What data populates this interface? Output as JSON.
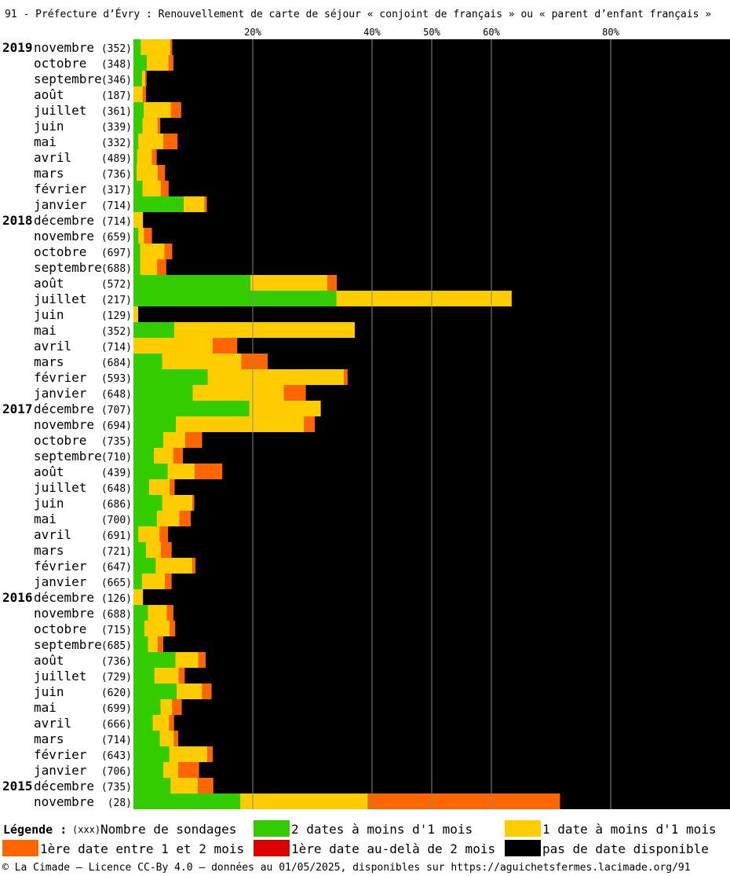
{
  "title": "91 - Préfecture d’Évry : Renouvellement de carte de séjour « conjoint de français » ou « parent d’enfant français »",
  "footer": "© La Cimade — Licence CC-By 4.0 — données au 01/05/2025, disponibles sur https://aguichetsfermes.lacimade.org/91",
  "legend": {
    "title": "Légende :",
    "count_marker": "(xxx)",
    "count_label": "Nombre de sondages",
    "items": [
      {
        "label": "2 dates à moins d'1 mois",
        "color": "#33cc00"
      },
      {
        "label": "1 date à moins d'1 mois",
        "color": "#ffcc00"
      },
      {
        "label": "1ère date entre 1 et 2 mois",
        "color": "#ff6600"
      },
      {
        "label": "1ère date au-delà de 2 mois",
        "color": "#dd0000"
      },
      {
        "label": "pas de date disponible",
        "color": "#000000"
      }
    ]
  },
  "chart_data": {
    "type": "bar",
    "orientation": "horizontal",
    "stacked": true,
    "xlim": [
      0,
      100
    ],
    "x_ticks": [
      20,
      40,
      50,
      60,
      80
    ],
    "x_tick_labels": [
      "20%",
      "40%",
      "50%",
      "60%",
      "80%"
    ],
    "grid": true,
    "colors": [
      "#33cc00",
      "#ffcc00",
      "#ff6600",
      "#dd0000",
      "#000000"
    ],
    "series_labels": [
      "2 dates à moins d'1 mois",
      "1 date à moins d'1 mois",
      "1ère date entre 1 et 2 mois",
      "1ère date au-delà de 2 mois",
      "pas de date disponible"
    ],
    "rows": [
      {
        "year": "2019",
        "month": "novembre",
        "count": "(352)",
        "values": [
          1.2,
          5.0,
          0.3,
          0
        ]
      },
      {
        "year": "",
        "month": "octobre",
        "count": "(348)",
        "values": [
          2.2,
          3.7,
          0.8,
          0
        ]
      },
      {
        "year": "",
        "month": "septembre",
        "count": "(346)",
        "values": [
          1.4,
          0.6,
          0.2,
          0
        ]
      },
      {
        "year": "",
        "month": "août",
        "count": "(187)",
        "values": [
          0,
          1.6,
          0.5,
          0
        ]
      },
      {
        "year": "",
        "month": "juillet",
        "count": "(361)",
        "values": [
          1.7,
          4.6,
          1.7,
          0
        ]
      },
      {
        "year": "",
        "month": "juin",
        "count": "(339)",
        "values": [
          1.5,
          2.6,
          0.4,
          0
        ]
      },
      {
        "year": "",
        "month": "mai",
        "count": "(332)",
        "values": [
          0.8,
          4.2,
          2.4,
          0
        ]
      },
      {
        "year": "",
        "month": "avril",
        "count": "(489)",
        "values": [
          0.6,
          2.5,
          0.8,
          0
        ]
      },
      {
        "year": "",
        "month": "mars",
        "count": "(736)",
        "values": [
          0.5,
          3.6,
          1.2,
          0
        ]
      },
      {
        "year": "",
        "month": "février",
        "count": "(317)",
        "values": [
          1.5,
          3.1,
          1.3,
          0
        ]
      },
      {
        "year": "",
        "month": "janvier",
        "count": "(714)",
        "values": [
          8.4,
          3.5,
          0.4,
          0
        ]
      },
      {
        "year": "2018",
        "month": "décembre",
        "count": "(714)",
        "values": [
          0,
          1.6,
          0,
          0
        ]
      },
      {
        "year": "",
        "month": "novembre",
        "count": "(659)",
        "values": [
          0.8,
          1.0,
          1.3,
          0
        ]
      },
      {
        "year": "",
        "month": "octobre",
        "count": "(697)",
        "values": [
          1.1,
          4.1,
          1.3,
          0
        ]
      },
      {
        "year": "",
        "month": "septembre",
        "count": "(688)",
        "values": [
          1.1,
          2.9,
          1.5,
          0
        ]
      },
      {
        "year": "",
        "month": "août",
        "count": "(572)",
        "values": [
          19.6,
          12.9,
          1.6,
          0
        ]
      },
      {
        "year": "",
        "month": "juillet",
        "count": "(217)",
        "values": [
          34.0,
          29.4,
          0,
          0
        ]
      },
      {
        "year": "",
        "month": "juin",
        "count": "(129)",
        "values": [
          0,
          0.8,
          0,
          0
        ]
      },
      {
        "year": "",
        "month": "mai",
        "count": "(352)",
        "values": [
          6.8,
          30.3,
          0,
          0
        ]
      },
      {
        "year": "",
        "month": "avril",
        "count": "(714)",
        "values": [
          0,
          13.3,
          4.1,
          0
        ]
      },
      {
        "year": "",
        "month": "mars",
        "count": "(684)",
        "values": [
          4.8,
          13.3,
          4.4,
          0
        ]
      },
      {
        "year": "",
        "month": "février",
        "count": "(593)",
        "values": [
          12.4,
          22.9,
          0.6,
          0
        ]
      },
      {
        "year": "",
        "month": "janvier",
        "count": "(648)",
        "values": [
          9.9,
          15.3,
          3.7,
          0
        ]
      },
      {
        "year": "2017",
        "month": "décembre",
        "count": "(707)",
        "values": [
          19.4,
          12.0,
          0,
          0
        ]
      },
      {
        "year": "",
        "month": "novembre",
        "count": "(694)",
        "values": [
          7.1,
          21.5,
          1.8,
          0
        ]
      },
      {
        "year": "",
        "month": "octobre",
        "count": "(735)",
        "values": [
          5.0,
          3.7,
          2.8,
          0
        ]
      },
      {
        "year": "",
        "month": "septembre",
        "count": "(710)",
        "values": [
          3.4,
          3.3,
          1.6,
          0
        ]
      },
      {
        "year": "",
        "month": "août",
        "count": "(439)",
        "values": [
          5.7,
          4.6,
          4.6,
          0
        ]
      },
      {
        "year": "",
        "month": "juillet",
        "count": "(648)",
        "values": [
          2.6,
          3.5,
          0.8,
          0
        ]
      },
      {
        "year": "",
        "month": "juin",
        "count": "(686)",
        "values": [
          4.8,
          5.1,
          0.3,
          0
        ]
      },
      {
        "year": "",
        "month": "mai",
        "count": "(700)",
        "values": [
          3.9,
          3.8,
          1.9,
          0
        ]
      },
      {
        "year": "",
        "month": "avril",
        "count": "(691)",
        "values": [
          0.8,
          3.6,
          1.4,
          0
        ]
      },
      {
        "year": "",
        "month": "mars",
        "count": "(721)",
        "values": [
          2.1,
          2.5,
          1.8,
          0
        ]
      },
      {
        "year": "",
        "month": "février",
        "count": "(647)",
        "values": [
          3.7,
          6.2,
          0.5,
          0
        ]
      },
      {
        "year": "",
        "month": "janvier",
        "count": "(665)",
        "values": [
          1.4,
          3.9,
          1.1,
          0
        ]
      },
      {
        "year": "2016",
        "month": "décembre",
        "count": "(126)",
        "values": [
          0,
          1.6,
          0,
          0
        ]
      },
      {
        "year": "",
        "month": "novembre",
        "count": "(688)",
        "values": [
          2.4,
          3.2,
          1.1,
          0
        ]
      },
      {
        "year": "",
        "month": "octobre",
        "count": "(715)",
        "values": [
          1.8,
          4.3,
          0.9,
          0
        ]
      },
      {
        "year": "",
        "month": "septembre",
        "count": "(685)",
        "values": [
          2.4,
          1.7,
          0.9,
          0
        ]
      },
      {
        "year": "",
        "month": "août",
        "count": "(736)",
        "values": [
          7.0,
          3.9,
          1.2,
          0
        ]
      },
      {
        "year": "",
        "month": "juillet",
        "count": "(729)",
        "values": [
          3.5,
          4.1,
          1.0,
          0
        ]
      },
      {
        "year": "",
        "month": "juin",
        "count": "(620)",
        "values": [
          7.2,
          4.3,
          1.6,
          0
        ]
      },
      {
        "year": "",
        "month": "mai",
        "count": "(699)",
        "values": [
          4.5,
          2.0,
          1.6,
          0
        ]
      },
      {
        "year": "",
        "month": "avril",
        "count": "(666)",
        "values": [
          3.2,
          2.8,
          0.8,
          0
        ]
      },
      {
        "year": "",
        "month": "mars",
        "count": "(714)",
        "values": [
          4.4,
          2.4,
          0.7,
          0
        ]
      },
      {
        "year": "",
        "month": "février",
        "count": "(643)",
        "values": [
          6.0,
          6.4,
          0.9,
          0
        ]
      },
      {
        "year": "",
        "month": "janvier",
        "count": "(706)",
        "values": [
          5.0,
          2.5,
          3.5,
          0
        ]
      },
      {
        "year": "2015",
        "month": "décembre",
        "count": "(735)",
        "values": [
          6.2,
          4.6,
          2.6,
          0
        ]
      },
      {
        "year": "",
        "month": "novembre",
        "count": "(28)",
        "values": [
          17.9,
          21.4,
          32.2,
          0
        ]
      }
    ]
  }
}
